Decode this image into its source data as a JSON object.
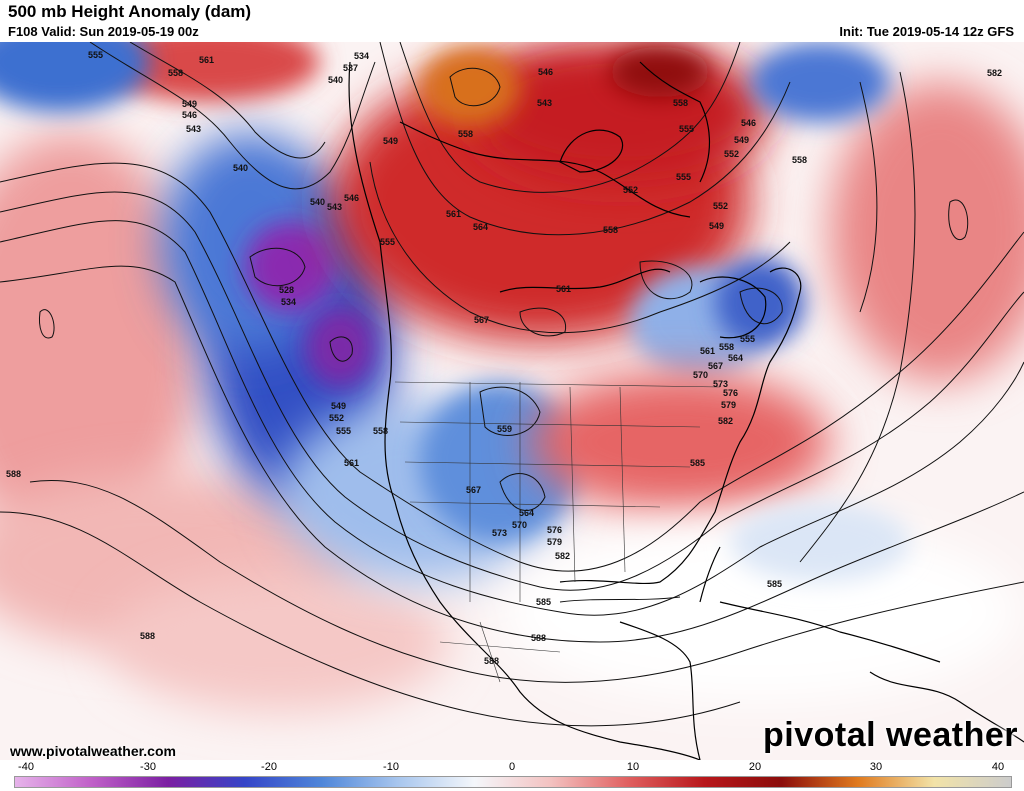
{
  "header": {
    "title": "500 mb Height Anomaly (dam)",
    "valid": "F108 Valid: Sun 2019-05-19 00z",
    "init": "Init: Tue 2019-05-14 12z GFS"
  },
  "footer": {
    "website": "www.pivotalweather.com",
    "brand": "pivotal weather"
  },
  "colorbar": {
    "ticks": [
      "-40",
      "-30",
      "-20",
      "-10",
      "0",
      "10",
      "20",
      "30",
      "40"
    ],
    "stops": [
      "#e6b3ea",
      "#c060c8",
      "#7b1fa2",
      "#3545c8",
      "#4f86d9",
      "#a8c6ee",
      "#f4f7fb",
      "#f3c1c0",
      "#e06060",
      "#b8171b",
      "#8b0d0b",
      "#e07a1e",
      "#f2e3a8",
      "#cccccc"
    ]
  },
  "contour_labels": [
    {
      "text": "555"
    },
    {
      "text": "558"
    },
    {
      "text": "561"
    },
    {
      "text": "534"
    },
    {
      "text": "537"
    },
    {
      "text": "540"
    },
    {
      "text": "546"
    },
    {
      "text": "558"
    },
    {
      "text": "558"
    },
    {
      "text": "555"
    },
    {
      "text": "582"
    },
    {
      "text": "549"
    },
    {
      "text": "546"
    },
    {
      "text": "543"
    },
    {
      "text": "549"
    },
    {
      "text": "552"
    },
    {
      "text": "558"
    },
    {
      "text": "546"
    },
    {
      "text": "549"
    },
    {
      "text": "555"
    },
    {
      "text": "543"
    },
    {
      "text": "540"
    },
    {
      "text": "540"
    },
    {
      "text": "543"
    },
    {
      "text": "546"
    },
    {
      "text": "555"
    },
    {
      "text": "552"
    },
    {
      "text": "549"
    },
    {
      "text": "552"
    },
    {
      "text": "561"
    },
    {
      "text": "564"
    },
    {
      "text": "558"
    },
    {
      "text": "528"
    },
    {
      "text": "534"
    },
    {
      "text": "561"
    },
    {
      "text": "567"
    },
    {
      "text": "555"
    },
    {
      "text": "561"
    },
    {
      "text": "558"
    },
    {
      "text": "564"
    },
    {
      "text": "567"
    },
    {
      "text": "570"
    },
    {
      "text": "573"
    },
    {
      "text": "576"
    },
    {
      "text": "579"
    },
    {
      "text": "582"
    },
    {
      "text": "549"
    },
    {
      "text": "552"
    },
    {
      "text": "555"
    },
    {
      "text": "558"
    },
    {
      "text": "561"
    },
    {
      "text": "559"
    },
    {
      "text": "567"
    },
    {
      "text": "564"
    },
    {
      "text": "570"
    },
    {
      "text": "573"
    },
    {
      "text": "576"
    },
    {
      "text": "579"
    },
    {
      "text": "582"
    },
    {
      "text": "585"
    },
    {
      "text": "588"
    },
    {
      "text": "588"
    },
    {
      "text": "585"
    },
    {
      "text": "588"
    },
    {
      "text": "588"
    },
    {
      "text": "585"
    }
  ]
}
